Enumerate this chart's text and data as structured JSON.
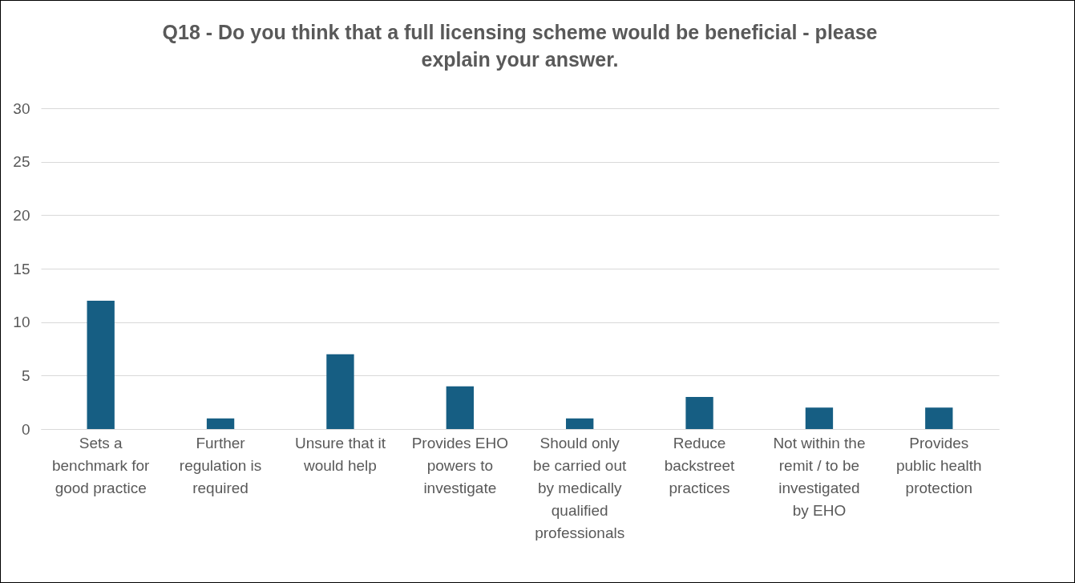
{
  "chart_data": {
    "type": "bar",
    "title": "Q18 - Do you think that a full licensing scheme would be beneficial - please explain your answer.",
    "categories": [
      "Sets a benchmark for good practice",
      "Further regulation is required",
      "Unsure that it would help",
      "Provides EHO powers to investigate",
      "Should only be carried out by medically qualified professionals",
      "Reduce backstreet practices",
      "Not within the remit / to be investigated by EHO",
      "Provides public health protection"
    ],
    "values": [
      12,
      1,
      7,
      4,
      1,
      3,
      2,
      2
    ],
    "color": "#165e83",
    "ylim": [
      0,
      30
    ],
    "yticks": [
      0,
      5,
      10,
      15,
      20,
      25,
      30
    ],
    "grid": "y"
  }
}
